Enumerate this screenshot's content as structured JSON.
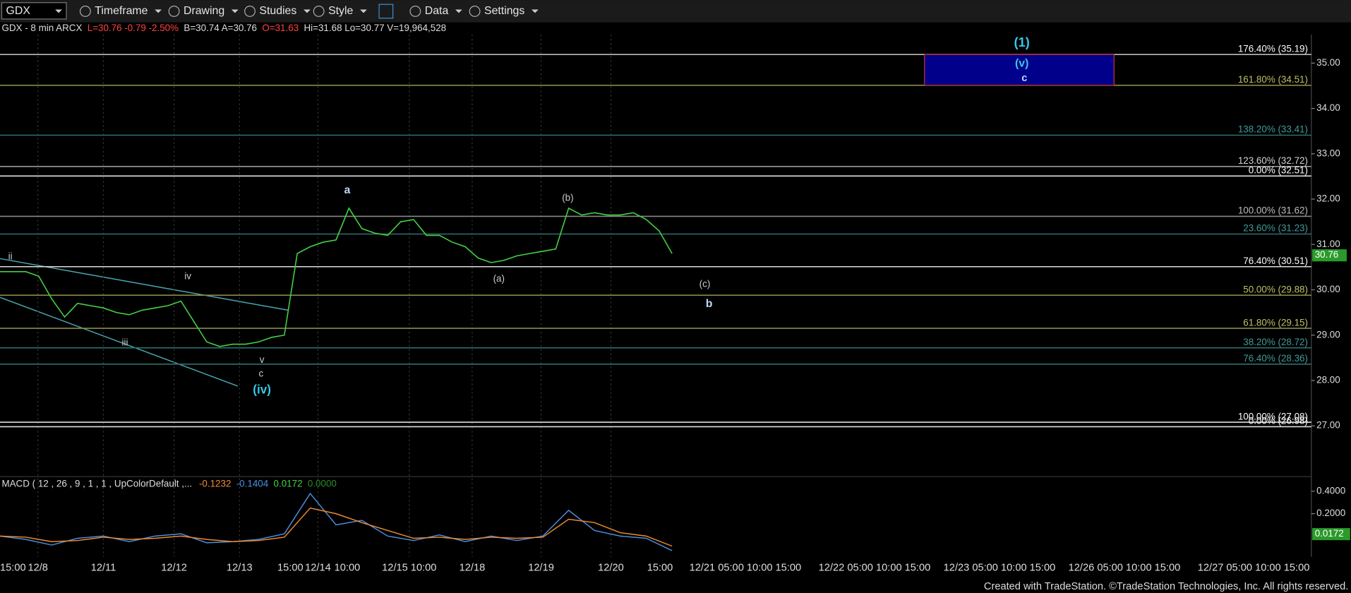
{
  "toolbar": {
    "symbol": "GDX",
    "menus": [
      "Timeframe",
      "Drawing",
      "Studies",
      "Style",
      "Data",
      "Settings"
    ]
  },
  "info": {
    "symbol": "GDX - 8 min ARCX",
    "last": "L=30.76 -0.79 -2.50%",
    "bid_ask": "B=30.74 A=30.76",
    "open": "O=31.63",
    "rest": "Hi=31.68 Lo=30.77 V=19,964,528"
  },
  "chart_data": {
    "type": "line",
    "color": "#44d044",
    "values": [
      30.4,
      30.4,
      30.4,
      30.3,
      29.8,
      29.4,
      29.7,
      29.65,
      29.6,
      29.5,
      29.45,
      29.55,
      29.6,
      29.65,
      29.75,
      29.3,
      28.85,
      28.75,
      28.8,
      28.8,
      28.85,
      28.95,
      29.0,
      30.8,
      30.95,
      31.05,
      31.1,
      31.8,
      31.35,
      31.25,
      31.2,
      31.5,
      31.55,
      31.2,
      31.2,
      31.05,
      30.95,
      30.7,
      30.6,
      30.65,
      30.75,
      30.8,
      30.85,
      30.9,
      31.8,
      31.65,
      31.7,
      31.65,
      31.65,
      31.7,
      31.55,
      31.3,
      30.8
    ],
    "ylim": [
      25.88,
      35.63
    ],
    "yticks": [
      {
        "value": 27,
        "label": "27.00"
      },
      {
        "value": 28,
        "label": "28.00"
      },
      {
        "value": 29,
        "label": "29.00"
      },
      {
        "value": 30,
        "label": "30.00"
      },
      {
        "value": 31,
        "label": "31.00"
      },
      {
        "value": 32,
        "label": "32.00"
      },
      {
        "value": 33,
        "label": "33.00"
      },
      {
        "value": 34,
        "label": "34.00"
      },
      {
        "value": 35,
        "label": "35.00"
      }
    ],
    "last_price": {
      "value": 30.76,
      "label": "30.76"
    },
    "levels": [
      {
        "label": "176.40% (35.19)",
        "value": 35.19,
        "color": "#bbbbbb"
      },
      {
        "label": "161.80% (34.51)",
        "value": 34.51,
        "color": "#8a8a4a"
      },
      {
        "label": "138.20% (33.41)",
        "value": 33.41,
        "color": "#2f6f6f"
      },
      {
        "label": "123.60% (32.72)",
        "value": 32.72,
        "color": "#999999"
      },
      {
        "label": "0.00% (32.51)",
        "value": 32.51,
        "color": "#e0e0e0"
      },
      {
        "label": "100.00% (31.62)",
        "value": 31.62,
        "color": "#888888"
      },
      {
        "label": "23.60% (31.23)",
        "value": 31.23,
        "color": "#2f6f6f"
      },
      {
        "label": "76.40% (30.51)",
        "value": 30.51,
        "color": "#dddddd"
      },
      {
        "label": "50.00% (29.88)",
        "value": 29.88,
        "color": "#8a8a4a"
      },
      {
        "label": "61.80% (29.15)",
        "value": 29.15,
        "color": "#8a8a4a"
      },
      {
        "label": "38.20% (28.72)",
        "value": 28.72,
        "color": "#2f6f6f"
      },
      {
        "label": "76.40% (28.36)",
        "value": 28.36,
        "color": "#2f6f6f"
      },
      {
        "label": "100.00% (27.08)",
        "value": 27.08,
        "color": "#dddddd"
      },
      {
        "label": "0.00% (26.98)",
        "value": 26.98,
        "color": "#dddddd"
      }
    ],
    "target_box": {
      "top": 35.19,
      "bottom": 34.51,
      "color": "#00008b",
      "labels": [
        "(1)",
        "(v)",
        "c"
      ]
    },
    "wave_labels": [
      "ii",
      "iv",
      "iii",
      "v",
      "c",
      "(iv)",
      "a",
      "(a)",
      "(b)",
      "(c)",
      "b"
    ],
    "x_labels": [
      "15:00",
      "12/8",
      "12/11",
      "12/12",
      "12/13",
      "15:00",
      "12/14",
      "10:00",
      "12/15 10:00",
      "12/18",
      "12/19",
      "12/20",
      "15:00",
      "12/21 05:00 10:00 15:00",
      "12/22 05:00 10:00 15:00",
      "12/23 05:00 10:00 15:00",
      "12/26 05:00 10:00 15:00",
      "12/27 05:00 10:00 15:00"
    ]
  },
  "macd": {
    "title": "MACD ( 12 , 26 , 9 , 1 , 1 , UpColorDefault ,...",
    "readouts": [
      {
        "text": "-0.1232",
        "color": "#f08a30"
      },
      {
        "text": "-0.1404",
        "color": "#4a8fe0"
      },
      {
        "text": "0.0172",
        "color": "#44d044"
      },
      {
        "text": "0.0000",
        "color": "#2a8a2a"
      }
    ],
    "ylim": [
      -0.177,
      0.531
    ],
    "yticks": [
      {
        "value": 0.4,
        "label": "0.4000"
      },
      {
        "value": 0.2,
        "label": "0.2000"
      }
    ],
    "last": {
      "value": 0.0172,
      "label": "0.0172"
    },
    "lines": [
      {
        "color": "#4a8fe0",
        "values": [
          0.0,
          -0.03,
          -0.08,
          -0.02,
          0.0,
          -0.05,
          0.0,
          0.02,
          -0.06,
          -0.05,
          -0.03,
          0.02,
          0.38,
          0.1,
          0.14,
          0.0,
          -0.04,
          0.01,
          -0.05,
          0.0,
          -0.04,
          0.0,
          0.23,
          0.05,
          0.0,
          -0.02,
          -0.13
        ]
      },
      {
        "color": "#f08a30",
        "values": [
          0.0,
          -0.01,
          -0.05,
          -0.04,
          -0.01,
          -0.03,
          -0.02,
          0.0,
          -0.03,
          -0.05,
          -0.04,
          -0.01,
          0.25,
          0.2,
          0.12,
          0.05,
          -0.02,
          -0.01,
          -0.03,
          -0.01,
          -0.02,
          -0.01,
          0.15,
          0.12,
          0.03,
          0.0,
          -0.09
        ]
      }
    ]
  },
  "footer": "Created with TradeStation. ©TradeStation Technologies, Inc. All rights reserved."
}
